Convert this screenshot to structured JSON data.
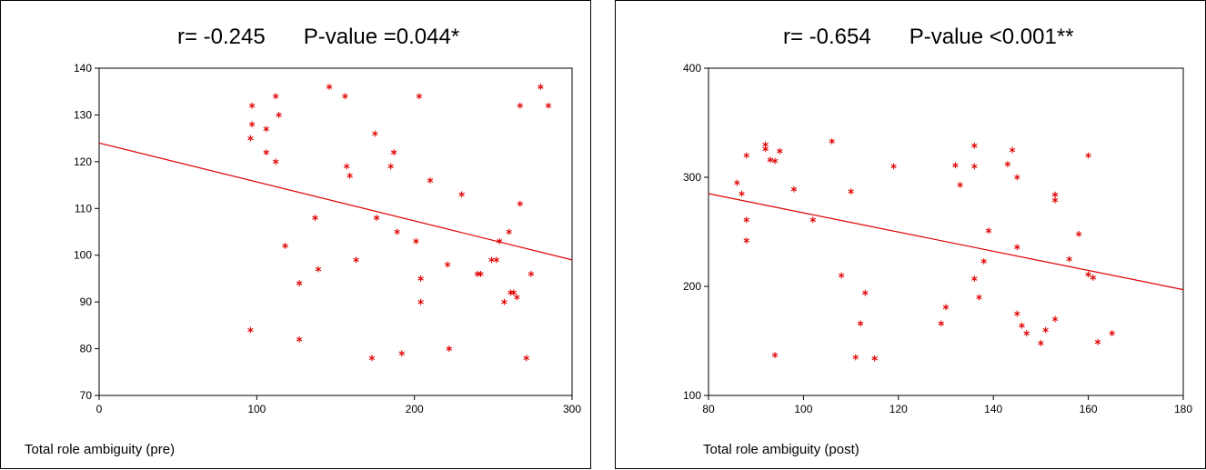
{
  "chart_data": [
    {
      "type": "scatter",
      "title_r": "r= -0.245",
      "title_p": "P-value =0.044*",
      "xlabel": "Total role ambiguity (pre)",
      "ylabel": "",
      "xlim": [
        0,
        300
      ],
      "ylim": [
        70,
        140
      ],
      "xticks": [
        0,
        100,
        200,
        300
      ],
      "yticks": [
        70,
        80,
        90,
        100,
        110,
        120,
        130,
        140
      ],
      "grid": false,
      "marker": "asterisk",
      "color": "#e00000",
      "regression_line": {
        "x": [
          0,
          300
        ],
        "y": [
          124,
          99
        ]
      },
      "points": [
        [
          96,
          125
        ],
        [
          97,
          132
        ],
        [
          97,
          128
        ],
        [
          106,
          127
        ],
        [
          106,
          122
        ],
        [
          112,
          134
        ],
        [
          112,
          120
        ],
        [
          114,
          130
        ],
        [
          96,
          84
        ],
        [
          118,
          102
        ],
        [
          127,
          94
        ],
        [
          127,
          82
        ],
        [
          137,
          108
        ],
        [
          139,
          97
        ],
        [
          146,
          136
        ],
        [
          156,
          134
        ],
        [
          157,
          119
        ],
        [
          159,
          117
        ],
        [
          163,
          99
        ],
        [
          173,
          78
        ],
        [
          175,
          126
        ],
        [
          176,
          108
        ],
        [
          185,
          119
        ],
        [
          187,
          122
        ],
        [
          189,
          105
        ],
        [
          192,
          79
        ],
        [
          201,
          103
        ],
        [
          203,
          134
        ],
        [
          204,
          95
        ],
        [
          204,
          90
        ],
        [
          210,
          116
        ],
        [
          221,
          98
        ],
        [
          222,
          80
        ],
        [
          230,
          113
        ],
        [
          240,
          96
        ],
        [
          242,
          96
        ],
        [
          249,
          99
        ],
        [
          252,
          99
        ],
        [
          254,
          103
        ],
        [
          257,
          90
        ],
        [
          260,
          105
        ],
        [
          261,
          92
        ],
        [
          263,
          92
        ],
        [
          265,
          91
        ],
        [
          267,
          111
        ],
        [
          267,
          132
        ],
        [
          271,
          78
        ],
        [
          274,
          96
        ],
        [
          280,
          136
        ],
        [
          285,
          132
        ]
      ]
    },
    {
      "type": "scatter",
      "title_r": "r= -0.654",
      "title_p": "P-value <0.001**",
      "xlabel": "Total role ambiguity (post)",
      "ylabel": "",
      "xlim": [
        80,
        180
      ],
      "ylim": [
        100,
        400
      ],
      "xticks": [
        80,
        100,
        120,
        140,
        160,
        180
      ],
      "yticks": [
        100,
        200,
        300,
        400
      ],
      "grid": false,
      "marker": "asterisk",
      "color": "#e00000",
      "regression_line": {
        "x": [
          80,
          180
        ],
        "y": [
          285,
          197
        ]
      },
      "points": [
        [
          86,
          295
        ],
        [
          87,
          285
        ],
        [
          88,
          320
        ],
        [
          88,
          261
        ],
        [
          88,
          242
        ],
        [
          92,
          330
        ],
        [
          92,
          326
        ],
        [
          93,
          316
        ],
        [
          94,
          315
        ],
        [
          95,
          324
        ],
        [
          94,
          137
        ],
        [
          98,
          289
        ],
        [
          102,
          261
        ],
        [
          106,
          333
        ],
        [
          108,
          210
        ],
        [
          110,
          287
        ],
        [
          111,
          135
        ],
        [
          112,
          166
        ],
        [
          113,
          194
        ],
        [
          115,
          134
        ],
        [
          119,
          310
        ],
        [
          129,
          166
        ],
        [
          130,
          181
        ],
        [
          132,
          311
        ],
        [
          133,
          293
        ],
        [
          136,
          329
        ],
        [
          136,
          310
        ],
        [
          136,
          207
        ],
        [
          137,
          190
        ],
        [
          138,
          223
        ],
        [
          139,
          251
        ],
        [
          143,
          312
        ],
        [
          144,
          325
        ],
        [
          145,
          300
        ],
        [
          145,
          236
        ],
        [
          145,
          175
        ],
        [
          146,
          164
        ],
        [
          147,
          157
        ],
        [
          150,
          148
        ],
        [
          151,
          160
        ],
        [
          153,
          284
        ],
        [
          153,
          279
        ],
        [
          153,
          170
        ],
        [
          156,
          225
        ],
        [
          158,
          248
        ],
        [
          160,
          320
        ],
        [
          160,
          211
        ],
        [
          161,
          208
        ],
        [
          162,
          149
        ],
        [
          165,
          157
        ]
      ]
    }
  ]
}
